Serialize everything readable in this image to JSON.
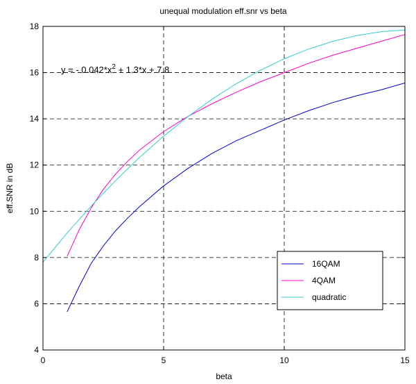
{
  "chart_data": {
    "type": "line",
    "title": "unequal modulation eff.snr vs beta",
    "xlabel": "beta",
    "ylabel": "eff.SNR in dB",
    "xlim": [
      0,
      15
    ],
    "ylim": [
      4,
      18
    ],
    "xticks": [
      0,
      5,
      10,
      15
    ],
    "yticks": [
      4,
      6,
      8,
      10,
      12,
      14,
      16,
      18
    ],
    "grid": true,
    "grid_style": "dashed",
    "legend_position": "bottom-right",
    "annotation": {
      "text_pre": "y = - 0.042*x",
      "text_sup": "2",
      "text_post": " + 1.3*x + 7.8",
      "x": 0,
      "y": 16
    },
    "series": [
      {
        "name": "16QAM",
        "color": "#0000cc",
        "x": [
          1,
          1.5,
          2,
          2.5,
          3,
          3.5,
          4,
          5,
          6,
          7,
          8,
          9,
          10,
          11,
          12,
          13,
          14,
          15
        ],
        "y": [
          5.65,
          6.75,
          7.75,
          8.5,
          9.15,
          9.7,
          10.2,
          11.1,
          11.85,
          12.5,
          13.05,
          13.5,
          13.95,
          14.35,
          14.7,
          15.0,
          15.25,
          15.55
        ]
      },
      {
        "name": "4QAM",
        "color": "#ff00cc",
        "x": [
          1,
          1.5,
          2,
          2.5,
          3,
          3.5,
          4,
          5,
          6,
          7,
          8,
          9,
          10,
          11,
          12,
          13,
          14,
          15
        ],
        "y": [
          8.05,
          9.2,
          10.15,
          10.95,
          11.6,
          12.15,
          12.65,
          13.45,
          14.1,
          14.65,
          15.15,
          15.6,
          16.0,
          16.4,
          16.75,
          17.05,
          17.35,
          17.65
        ]
      },
      {
        "name": "quadratic",
        "color": "#33cccc",
        "x": [
          0,
          1,
          2,
          3,
          4,
          5,
          6,
          7,
          8,
          9,
          10,
          11,
          12,
          13,
          14,
          15
        ],
        "y": [
          7.8,
          9.058,
          10.232,
          11.322,
          12.328,
          13.25,
          14.088,
          14.842,
          15.512,
          16.098,
          16.6,
          17.018,
          17.352,
          17.602,
          17.768,
          17.85
        ]
      }
    ]
  }
}
